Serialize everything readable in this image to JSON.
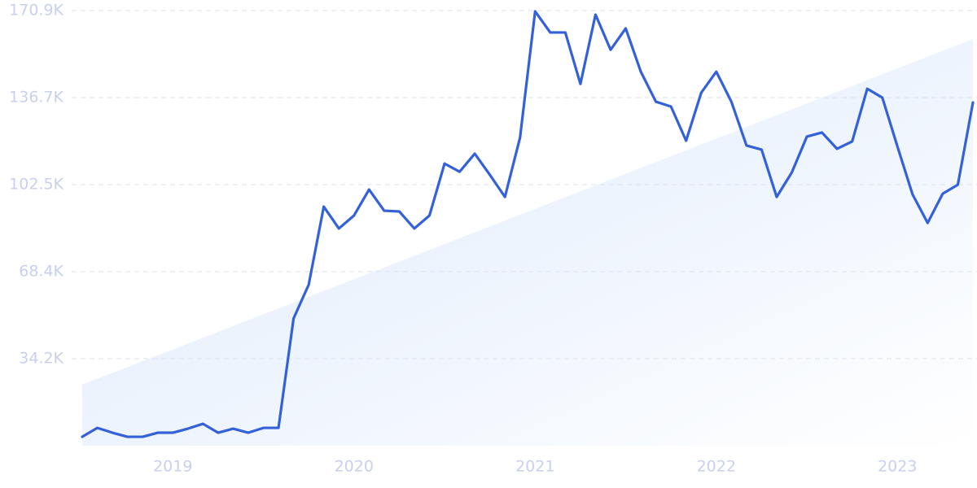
{
  "chart_data": {
    "type": "line",
    "categories": [
      null,
      null,
      null,
      null,
      null,
      null,
      "2019",
      null,
      null,
      null,
      null,
      null,
      null,
      null,
      null,
      null,
      null,
      null,
      "2020",
      null,
      null,
      null,
      null,
      null,
      null,
      null,
      null,
      null,
      null,
      null,
      "2021",
      null,
      null,
      null,
      null,
      null,
      null,
      null,
      null,
      null,
      null,
      null,
      "2022",
      null,
      null,
      null,
      null,
      null,
      null,
      null,
      null,
      null,
      null,
      null,
      "2023",
      null,
      null,
      null,
      null,
      null
    ],
    "series": [
      {
        "name": null,
        "color": "#3461d9",
        "values": [
          3500,
          7000,
          5100,
          3500,
          3500,
          5100,
          5100,
          6700,
          8600,
          5100,
          6700,
          5100,
          7000,
          7000,
          50000,
          63200,
          93900,
          85300,
          90400,
          100600,
          92300,
          92000,
          85300,
          90400,
          110800,
          107600,
          114700,
          106400,
          97700,
          121000,
          170600,
          162300,
          162300,
          142100,
          169300,
          155500,
          163900,
          146900,
          135100,
          133200,
          119800,
          138600,
          146900,
          135100,
          117900,
          116300,
          97700,
          107300,
          121400,
          123000,
          116600,
          119500,
          140200,
          136700,
          117500,
          98700,
          87500,
          99000,
          102500,
          134800
        ]
      }
    ],
    "trend": {
      "color": "#dce9fb",
      "values": [
        24000,
        159700
      ]
    },
    "ylim": [
      0,
      170900
    ],
    "yticks": [
      {
        "value": 34180,
        "label": "34.2K"
      },
      {
        "value": 68360,
        "label": "68.4K"
      },
      {
        "value": 102540,
        "label": "102.5K"
      },
      {
        "value": 136720,
        "label": "136.7K"
      },
      {
        "value": 170900,
        "label": "170.9K"
      }
    ],
    "grid": true
  }
}
